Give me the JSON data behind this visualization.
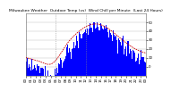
{
  "title": "Milwaukee Weather  Outdoor Temp (vs)  Wind Chill per Minute  (Last 24 Hours)",
  "bg_color": "#ffffff",
  "plot_bg_color": "#ffffff",
  "bar_color": "#0000ff",
  "line_color": "#cc0000",
  "grid_color": "#bbbbbb",
  "vline_color": "#888888",
  "ylim": [
    -10,
    60
  ],
  "yticks": [
    0,
    10,
    20,
    30,
    40,
    50
  ],
  "n_points": 1440,
  "vline_positions": [
    0.25,
    0.5
  ],
  "title_fontsize": 3.2,
  "tick_fontsize": 2.8,
  "seed": 42
}
